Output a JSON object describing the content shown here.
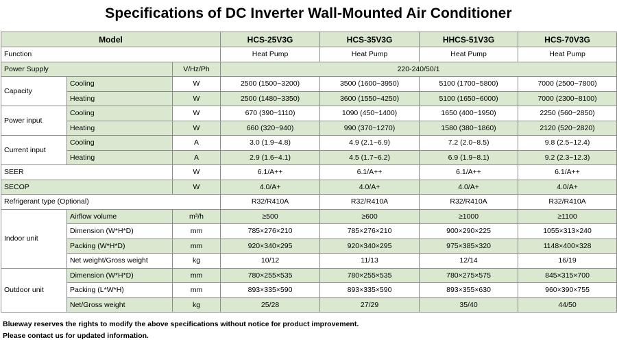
{
  "title": "Specifications of DC Inverter Wall-Mounted Air Conditioner",
  "header": {
    "label": "Model",
    "models": [
      "HCS-25V3G",
      "HCS-35V3G",
      "HHCS-51V3G",
      "HCS-70V3G"
    ]
  },
  "rows": {
    "function": {
      "label": "Function",
      "values": [
        "Heat Pump",
        "Heat Pump",
        "Heat Pump",
        "Heat Pump"
      ]
    },
    "power_supply": {
      "label": "Power Supply",
      "unit": "V/Hz/Ph",
      "value": "220-240/50/1"
    },
    "capacity": {
      "label": "Capacity",
      "cooling": {
        "label": "Cooling",
        "unit": "W",
        "values": [
          "2500 (1500~3200)",
          "3500 (1600~3950)",
          "5100 (1700~5800)",
          "7000 (2500~7800)"
        ]
      },
      "heating": {
        "label": "Heating",
        "unit": "W",
        "values": [
          "2500 (1480~3350)",
          "3600 (1550~4250)",
          "5100 (1650~6000)",
          "7000 (2300~8100)"
        ]
      }
    },
    "power_input": {
      "label": "Power input",
      "cooling": {
        "label": "Cooling",
        "unit": "W",
        "values": [
          "670 (390~1110)",
          "1090 (450~1400)",
          "1650 (400~1950)",
          "2250 (560~2850)"
        ]
      },
      "heating": {
        "label": "Heating",
        "unit": "W",
        "values": [
          "660 (320~940)",
          "990 (370~1270)",
          "1580 (380~1860)",
          "2120 (520~2820)"
        ]
      }
    },
    "current_input": {
      "label": "Current input",
      "cooling": {
        "label": "Cooling",
        "unit": "A",
        "values": [
          "3.0 (1.9~4.8)",
          "4.9 (2.1~6.9)",
          "7.2 (2.0~8.5)",
          "9.8 (2.5~12.4)"
        ]
      },
      "heating": {
        "label": "Heating",
        "unit": "A",
        "values": [
          "2.9 (1.6~4.1)",
          "4.5 (1.7~6.2)",
          "6.9 (1.9~8.1)",
          "9.2 (2.3~12.3)"
        ]
      }
    },
    "seer": {
      "label": "SEER",
      "unit": "W",
      "values": [
        "6.1/A++",
        "6.1/A++",
        "6.1/A++",
        "6.1/A++"
      ]
    },
    "secop": {
      "label": "SECOP",
      "unit": "W",
      "values": [
        "4.0/A+",
        "4.0/A+",
        "4.0/A+",
        "4.0/A+"
      ]
    },
    "refrigerant": {
      "label": "Refrigerant type (Optional)",
      "values": [
        "R32/R410A",
        "R32/R410A",
        "R32/R410A",
        "R32/R410A"
      ]
    },
    "indoor": {
      "label": "Indoor unit",
      "airflow": {
        "label": "Airflow volume",
        "unit": "m³/h",
        "values": [
          "≥500",
          "≥600",
          "≥1000",
          "≥1100"
        ]
      },
      "dimension": {
        "label": "Dimension (W*H*D)",
        "unit": "mm",
        "values": [
          "785×276×210",
          "785×276×210",
          "900×290×225",
          "1055×313×240"
        ]
      },
      "packing": {
        "label": "Packing (W*H*D)",
        "unit": "mm",
        "values": [
          "920×340×295",
          "920×340×295",
          "975×385×320",
          "1148×400×328"
        ]
      },
      "weight": {
        "label": "Net weight/Gross weight",
        "unit": "kg",
        "values": [
          "10/12",
          "11/13",
          "12/14",
          "16/19"
        ]
      }
    },
    "outdoor": {
      "label": "Outdoor unit",
      "dimension": {
        "label": "Dimension (W*H*D)",
        "unit": "mm",
        "values": [
          "780×255×535",
          "780×255×535",
          "780×275×575",
          "845×315×700"
        ]
      },
      "packing": {
        "label": "Packing (L*W*H)",
        "unit": "mm",
        "values": [
          "893×335×590",
          "893×335×590",
          "893×355×630",
          "960×390×755"
        ]
      },
      "weight": {
        "label": "Net/Gross weight",
        "unit": "kg",
        "values": [
          "25/28",
          "27/29",
          "35/40",
          "44/50"
        ]
      }
    }
  },
  "notes": [
    "Blueway reserves the rights to modify the above specifications without notice for product improvement.",
    "Please contact us for updated information."
  ]
}
